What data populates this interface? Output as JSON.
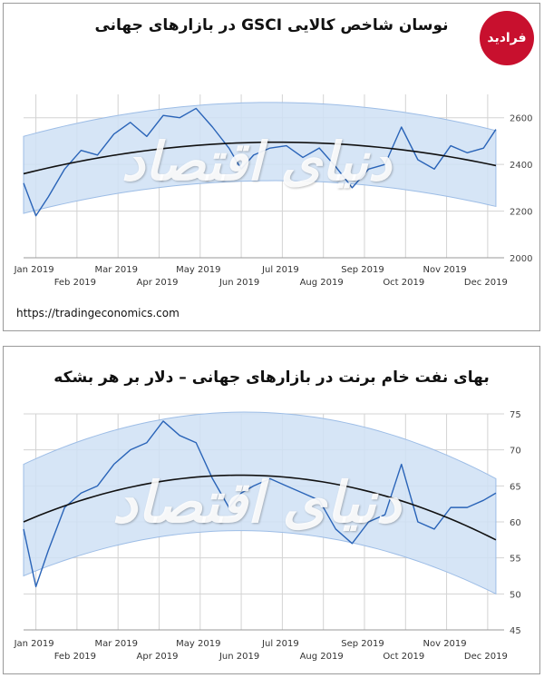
{
  "panel1": {
    "title": "نوسان شاخص کالایی GSCI  در بازارهای جهانی",
    "source": "https://tradingeconomics.com"
  },
  "panel2": {
    "title": "بهای نفت خام برنت در بازارهای جهانی – دلار بر هر بشکه"
  },
  "logo_text": "فرادید",
  "watermark_text": "دنیای اقتصاد",
  "colors": {
    "line": "#2a64b8",
    "band": "#cfe0f5",
    "band_edge": "#9dbde6",
    "trend": "#111111",
    "grid": "#d3d3d3"
  },
  "chart_data": [
    {
      "type": "line",
      "title": "نوسان شاخص کالایی GSCI  در بازارهای جهانی",
      "x_tick_labels_top": [
        "Jan 2019",
        "Mar 2019",
        "May 2019",
        "Jul 2019",
        "Sep 2019",
        "Nov 2019"
      ],
      "x_tick_labels_bottom": [
        "Feb 2019",
        "Apr 2019",
        "Jun 2019",
        "Aug 2019",
        "Oct 2019",
        "Dec 2019"
      ],
      "y_ticks": [
        2000,
        2200,
        2400,
        2600
      ],
      "ylim": [
        2000,
        2700
      ],
      "x_months": [
        0,
        0.3,
        0.6,
        1,
        1.4,
        1.8,
        2.2,
        2.6,
        3,
        3.4,
        3.8,
        4.2,
        4.6,
        5,
        5.3,
        5.6,
        6,
        6.4,
        6.8,
        7.2,
        7.6,
        8,
        8.4,
        8.8,
        9.2,
        9.6,
        10,
        10.4,
        10.8,
        11.2,
        11.5
      ],
      "series": [
        {
          "values": [
            2320,
            2180,
            2260,
            2380,
            2460,
            2440,
            2530,
            2580,
            2520,
            2610,
            2600,
            2640,
            2560,
            2470,
            2380,
            2440,
            2470,
            2480,
            2430,
            2470,
            2390,
            2300,
            2380,
            2400,
            2560,
            2420,
            2380,
            2480,
            2450,
            2470,
            2550
          ]
        }
      ],
      "trend": {
        "x_months": [
          0,
          6.4,
          11.5
        ],
        "values": [
          2360,
          2495,
          2395
        ]
      },
      "band": {
        "upper": {
          "x_months": [
            0,
            6.4,
            11.5
          ],
          "values": [
            2520,
            2665,
            2545
          ]
        },
        "lower": {
          "x_months": [
            0,
            6.4,
            11.5
          ],
          "values": [
            2190,
            2330,
            2220
          ]
        }
      }
    },
    {
      "type": "line",
      "title": "بهای نفت خام برنت در بازارهای جهانی – دلار بر هر بشکه",
      "x_tick_labels_top": [
        "Jan 2019",
        "Mar 2019",
        "May 2019",
        "Jul 2019",
        "Sep 2019",
        "Nov 2019"
      ],
      "x_tick_labels_bottom": [
        "Feb 2019",
        "Apr 2019",
        "Jun 2019",
        "Aug 2019",
        "Oct 2019",
        "Dec 2019"
      ],
      "y_ticks": [
        45,
        50,
        55,
        60,
        65,
        70,
        75
      ],
      "ylim": [
        45,
        75
      ],
      "x_months": [
        0,
        0.3,
        0.6,
        1,
        1.4,
        1.8,
        2.2,
        2.6,
        3,
        3.4,
        3.8,
        4.2,
        4.6,
        5,
        5.3,
        5.6,
        6,
        6.4,
        6.8,
        7.2,
        7.6,
        8,
        8.4,
        8.8,
        9.2,
        9.6,
        10,
        10.4,
        10.8,
        11.2,
        11.5
      ],
      "series": [
        {
          "values": [
            59,
            51,
            56,
            62,
            64,
            65,
            68,
            70,
            71,
            74,
            72,
            71,
            66,
            62,
            64,
            65,
            66,
            65,
            64,
            63,
            59,
            57,
            60,
            61,
            68,
            60,
            59,
            62,
            62,
            63,
            64
          ]
        }
      ],
      "trend": {
        "x_months": [
          0,
          6.4,
          11.5
        ],
        "values": [
          60,
          66.2,
          57.5
        ]
      },
      "band": {
        "upper": {
          "x_months": [
            0,
            6.4,
            11.5
          ],
          "values": [
            68,
            75,
            66
          ]
        },
        "lower": {
          "x_months": [
            0,
            6.4,
            11.5
          ],
          "values": [
            52.5,
            58.5,
            50
          ]
        }
      }
    }
  ]
}
